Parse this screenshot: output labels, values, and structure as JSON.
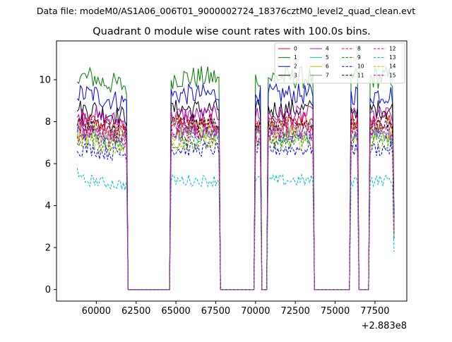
{
  "chart_data": {
    "type": "line",
    "suptitle": "Data file: modeM0/AS1A06_006T01_9000002724_18376cztM0_level2_quad_clean.evt",
    "title": "Quadrant 0 module wise count rates with 100.0s bins.",
    "xlabel": "",
    "ylabel": "",
    "x_offset_label": "+2.883e8",
    "xlim": [
      57500,
      79500
    ],
    "ylim": [
      -0.55,
      11.85
    ],
    "x_ticks": [
      60000,
      62500,
      65000,
      67500,
      70000,
      72500,
      75000,
      77500
    ],
    "x_tick_labels": [
      "60000",
      "62500",
      "65000",
      "67500",
      "70000",
      "72500",
      "75000",
      "77500"
    ],
    "y_ticks": [
      0,
      2,
      4,
      6,
      8,
      10
    ],
    "y_tick_labels": [
      "0",
      "2",
      "4",
      "6",
      "8",
      "10"
    ],
    "grid": false,
    "legend_position": "top-right",
    "segments": [
      {
        "kind": "on",
        "start": 58800,
        "end": 61900
      },
      {
        "kind": "off",
        "start": 62000,
        "end": 64600
      },
      {
        "kind": "on",
        "start": 64700,
        "end": 67700
      },
      {
        "kind": "off",
        "start": 67800,
        "end": 69900
      },
      {
        "kind": "on",
        "start": 70000,
        "end": 70300
      },
      {
        "kind": "off",
        "start": 70400,
        "end": 70700
      },
      {
        "kind": "on",
        "start": 70800,
        "end": 73600
      },
      {
        "kind": "off",
        "start": 73700,
        "end": 75900
      },
      {
        "kind": "on",
        "start": 76000,
        "end": 76400
      },
      {
        "kind": "off",
        "start": 76500,
        "end": 77100
      },
      {
        "kind": "on",
        "start": 77200,
        "end": 78700
      }
    ],
    "series": [
      {
        "name": "0",
        "color": "#ff0000",
        "dash": "solid",
        "level": 8.0,
        "first_value": 7.8,
        "last_value": 2.9
      },
      {
        "name": "1",
        "color": "#008000",
        "dash": "solid",
        "level": 10.1,
        "first_value": 9.9,
        "last_value": 3.6
      },
      {
        "name": "2",
        "color": "#0000ff",
        "dash": "solid",
        "level": 9.3,
        "first_value": 9.1,
        "last_value": 3.3
      },
      {
        "name": "3",
        "color": "#000000",
        "dash": "solid",
        "level": 8.6,
        "first_value": 8.5,
        "last_value": 3.1
      },
      {
        "name": "4",
        "color": "#bf00bf",
        "dash": "solid",
        "level": 8.3,
        "first_value": 8.2,
        "last_value": 3.0
      },
      {
        "name": "5",
        "color": "#00bfbf",
        "dash": "solid",
        "level": 7.4,
        "first_value": 7.2,
        "last_value": 2.7
      },
      {
        "name": "6",
        "color": "#bfbf00",
        "dash": "solid",
        "level": 7.5,
        "first_value": 7.4,
        "last_value": 2.7
      },
      {
        "name": "7",
        "color": "#808080",
        "dash": "solid",
        "level": 7.7,
        "first_value": 7.6,
        "last_value": 2.8
      },
      {
        "name": "8",
        "color": "#ff0000",
        "dash": "dashed",
        "level": 7.8,
        "first_value": 7.7,
        "last_value": 2.8
      },
      {
        "name": "9",
        "color": "#008000",
        "dash": "dashed",
        "level": 7.1,
        "first_value": 7.0,
        "last_value": 2.6
      },
      {
        "name": "10",
        "color": "#0000ff",
        "dash": "dashed",
        "level": 6.7,
        "first_value": 6.6,
        "last_value": 2.4
      },
      {
        "name": "11",
        "color": "#000000",
        "dash": "dashed",
        "level": 7.9,
        "first_value": 7.8,
        "last_value": 2.9
      },
      {
        "name": "12",
        "color": "#bf00bf",
        "dash": "dashed",
        "level": 7.6,
        "first_value": 7.5,
        "last_value": 2.8
      },
      {
        "name": "13",
        "color": "#00bfbf",
        "dash": "dashed",
        "level": 5.2,
        "first_value": 5.8,
        "last_value": 1.8
      },
      {
        "name": "14",
        "color": "#bfbf00",
        "dash": "dashed",
        "level": 7.0,
        "first_value": 6.9,
        "last_value": 2.5
      },
      {
        "name": "15",
        "color": "#bf00bf",
        "dash": "dashed",
        "level": 7.4,
        "first_value": 7.3,
        "last_value": 2.7
      }
    ]
  }
}
